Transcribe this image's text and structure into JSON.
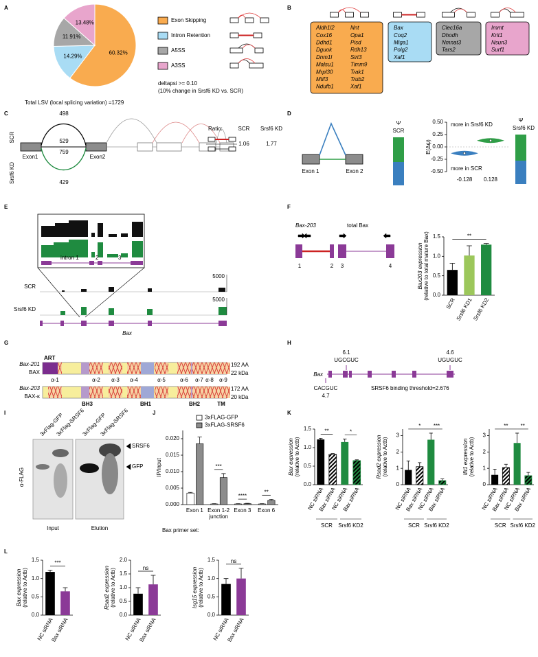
{
  "panels": {
    "A": {
      "letter": "A",
      "chart_data": {
        "type": "pie",
        "categories": [
          "Exon Skipping",
          "Intron Retention",
          "A5SS",
          "A3SS"
        ],
        "values": [
          60.32,
          14.29,
          11.91,
          13.48
        ],
        "value_labels": [
          "60.32%",
          "14.29%",
          "11.91%",
          "13.48%"
        ],
        "colors": [
          "#f9ab4f",
          "#a9dcf4",
          "#a7a7a7",
          "#e8a5cc"
        ],
        "note": [
          "deltapsi >= 0.10",
          "(10% change in Srsf6 KD vs. SCR)"
        ],
        "caption": "Total LSV (local splicing variation) =1729"
      }
    },
    "B": {
      "letter": "B",
      "groups": [
        {
          "color": "#f9ab4f",
          "genes": [
            "Aldh1l2",
            "Cox16",
            "Ddhd1",
            "Dguok",
            "Dnm1l",
            "Malsu1",
            "Mrpl30",
            "Mtif3",
            "Ndufb1",
            "Nnt",
            "Opa1",
            "Pisd",
            "Rdh13",
            "Sirt3",
            "Timm9",
            "Trak1",
            "Trub2",
            "Xaf1"
          ]
        },
        {
          "color": "#a9dcf4",
          "genes": [
            "Bax",
            "Coq2",
            "Miga1",
            "Polg2",
            "Xaf1"
          ]
        },
        {
          "color": "#a7a7a7",
          "genes": [
            "Clec16a",
            "Dhodh",
            "Nmnat3",
            "Tars2"
          ]
        },
        {
          "color": "#e8a5cc",
          "genes": [
            "Immt",
            "Krit1",
            "Nsun3",
            "Surf1"
          ]
        }
      ]
    },
    "C": {
      "letter": "C",
      "scr": "SCR",
      "kd": "Srsf6 KD",
      "counts": [
        498,
        529,
        759,
        429
      ],
      "exons": [
        "Exon1",
        "Exon2"
      ],
      "ratio": {
        "title": "Ratio:",
        "scr": "SCR",
        "kd": "Srsf6 KD",
        "values": [
          1.06,
          1.77
        ]
      }
    },
    "D": {
      "letter": "D",
      "exons": [
        "Exon 1",
        "Exon 2"
      ],
      "psi": [
        "Ψ",
        "Ψ"
      ],
      "scr": "SCR",
      "kd": "Srsf6 KD",
      "chart_data": {
        "type": "violin",
        "ylabel": "E(Δψ)",
        "ylim": [
          -0.5,
          0.5
        ],
        "yticks": [
          {
            "value": 0.5,
            "label": "0.50"
          },
          0.25,
          {
            "value": 0,
            "label": "0.00"
          },
          -0.25,
          {
            "value": -0.5,
            "label": "-0.50"
          }
        ],
        "annotations": [
          "more in Srsf6 KD",
          "more in SCR"
        ],
        "values": [
          -0.128,
          0.128
        ],
        "colors": [
          "#3a7fbf",
          "#2f9e47"
        ]
      }
    },
    "E": {
      "letter": "E",
      "zoom_labels": [
        "intron 1",
        "2",
        "3"
      ],
      "tracks": [
        "SCR",
        "Srsf6 KD"
      ],
      "scale": [
        5000,
        5000
      ],
      "gene": "Bax"
    },
    "F": {
      "letter": "F",
      "transcripts": [
        "Bax-203",
        "total Bax"
      ],
      "exons": [
        1,
        2,
        3,
        4
      ],
      "chart_data": {
        "type": "bar",
        "ylabel": "Bax203 expression",
        "ylabel2": "(relative to total mature Bax)",
        "categories": [
          "SCR",
          "Srsf6 KD1",
          "Srsf6 KD2"
        ],
        "values": [
          0.65,
          1.02,
          1.3
        ],
        "errors": [
          0.17,
          0.25,
          0.03
        ],
        "colors": [
          "#000000",
          "#9cc75b",
          "#1f8b40"
        ],
        "hatched": [
          false,
          false,
          false
        ],
        "ylim": [
          0,
          1.5
        ],
        "yticks": [
          {
            "value": 0,
            "label": "0.0"
          },
          0.5,
          {
            "value": 1,
            "label": "1.0"
          },
          1.5
        ],
        "significance": [
          "**"
        ]
      }
    },
    "G": {
      "letter": "G",
      "isoforms": [
        {
          "transcript": "Bax-201",
          "protein": "BAX",
          "length": "192 AA",
          "mass": "22 kDa"
        },
        {
          "transcript": "Bax-203",
          "protein": "BAX-κ",
          "length": "172 AA",
          "mass": "20 kDa"
        }
      ],
      "art": "ART",
      "helices": [
        "α-1",
        "α-2",
        "α-3",
        "α-4",
        "α-5",
        "α-6",
        "α-7",
        "α-8",
        "α-9"
      ],
      "domains": [
        "BH3",
        "BH1",
        "BH2",
        "TM"
      ]
    },
    "H": {
      "letter": "H",
      "gene": "Bax",
      "sites": [
        {
          "score": 6.1,
          "motif": "UGCGUC"
        },
        {
          "score": 4.6,
          "motif": "UGUGUC"
        },
        {
          "score": 4.7,
          "motif": "CACGUC"
        }
      ],
      "threshold": "SRSF6 binding threshold=2.676"
    },
    "I": {
      "letter": "I",
      "lanes": [
        "3xFlag-GFP",
        "3xFlag-SRSF6",
        "3xFlag-GFP",
        "3xFlag-SRSF6"
      ],
      "antibody": "α-FLAG",
      "bands": [
        "SRSF6",
        "GFP"
      ],
      "fractions": [
        "Input",
        "Elution"
      ]
    },
    "J": {
      "letter": "J",
      "chart_data": {
        "type": "grouped_bar",
        "ylabel": "IP/Input",
        "xlabel": "Bax primer set:",
        "categories": [
          "Exon 1",
          "Exon 1-2 junction",
          "Exon 3",
          "Exon 6"
        ],
        "series": [
          {
            "name": "3xFLAG-GFP",
            "color": "#ffffff",
            "values": [
              0.0035,
              0.0002,
              0.0002,
              0.0002
            ],
            "errors": [
              0.0002,
              0.0001,
              0.0001,
              0.0001
            ]
          },
          {
            "name": "3xFLAG-SRSF6",
            "color": "#8c8c8c",
            "values": [
              0.0185,
              0.0082,
              0.0003,
              0.0013
            ],
            "errors": [
              0.002,
              0.0012,
              0.0001,
              0.0003
            ]
          }
        ],
        "ylim": [
          0,
          0.0225
        ],
        "yticks": [
          {
            "value": 0,
            "label": "0.000"
          },
          {
            "value": 0.005,
            "label": "0.005"
          },
          {
            "value": 0.01,
            "label": "0.010"
          },
          {
            "value": 0.015,
            "label": "0.015"
          },
          {
            "value": 0.02,
            "label": "0.020"
          }
        ],
        "significance": [
          "***",
          "****",
          "**"
        ]
      }
    },
    "K": {
      "letter": "K",
      "groups": [
        "SCR",
        "Srsf6 KD2"
      ],
      "chart_data": [
        {
          "type": "bar",
          "ylabel": "Bax expression",
          "ylabel2": "(relative to Actb)",
          "categories": [
            "NC siRNA",
            "Bax siRNA",
            "NC siRNA",
            "Bax siRNA"
          ],
          "values": [
            1.22,
            0.82,
            1.15,
            0.65
          ],
          "errors": [
            0.03,
            0.02,
            0.08,
            0.02
          ],
          "colors": [
            "#000000",
            "#000000",
            "#1f8b40",
            "#1f8b40"
          ],
          "hatched": [
            false,
            true,
            false,
            true
          ],
          "ylim": [
            0,
            1.5
          ],
          "yticks": [
            {
              "value": 0,
              "label": "0.0"
            },
            0.5,
            {
              "value": 1,
              "label": "1.0"
            },
            1.5
          ],
          "significance": [
            "**",
            "*"
          ]
        },
        {
          "type": "bar",
          "ylabel": "Rsad2 expression",
          "ylabel2": "(relative to Actb)",
          "categories": [
            "NC siRNA",
            "Bax siRNA",
            "NC siRNA",
            "Bax siRNA"
          ],
          "values": [
            0.9,
            1.1,
            2.75,
            0.25
          ],
          "errors": [
            0.55,
            0.25,
            0.4,
            0.1
          ],
          "colors": [
            "#000000",
            "#000000",
            "#1f8b40",
            "#1f8b40"
          ],
          "hatched": [
            false,
            true,
            false,
            true
          ],
          "ylim": [
            0,
            3.4
          ],
          "yticks": [
            0,
            1,
            2,
            3
          ],
          "significance": [
            "*",
            "***"
          ]
        },
        {
          "type": "bar",
          "ylabel": "Ifit1 expression",
          "ylabel2": "(relative to Actb)",
          "categories": [
            "NC siRNA",
            "Bax siRNA",
            "NC siRNA",
            "Bax siRNA"
          ],
          "values": [
            0.6,
            1.05,
            2.55,
            0.55
          ],
          "errors": [
            0.35,
            0.2,
            0.6,
            0.2
          ],
          "colors": [
            "#000000",
            "#000000",
            "#1f8b40",
            "#1f8b40"
          ],
          "hatched": [
            false,
            true,
            false,
            true
          ],
          "ylim": [
            0,
            3.4
          ],
          "yticks": [
            0,
            1,
            2,
            3
          ],
          "significance": [
            "**",
            "**"
          ]
        }
      ]
    },
    "L": {
      "letter": "L",
      "chart_data": [
        {
          "type": "bar",
          "ylabel": "Bax expression",
          "ylabel2": "(relative to Actb)",
          "categories": [
            "NC siRNA",
            "Bax siRNA"
          ],
          "values": [
            1.18,
            0.65
          ],
          "errors": [
            0.05,
            0.1
          ],
          "colors": [
            "#000000",
            "#8b3a97"
          ],
          "hatched": [
            false,
            false
          ],
          "ylim": [
            0,
            1.5
          ],
          "yticks": [
            {
              "value": 0,
              "label": "0.0"
            },
            0.5,
            {
              "value": 1,
              "label": "1.0"
            },
            1.5
          ],
          "significance": [
            "***"
          ]
        },
        {
          "type": "bar",
          "ylabel": "Rsad2 expression",
          "ylabel2": "(relative to Actb)",
          "categories": [
            "NC siRNA",
            "Bax siRNA"
          ],
          "values": [
            0.78,
            1.12
          ],
          "errors": [
            0.22,
            0.33
          ],
          "colors": [
            "#000000",
            "#8b3a97"
          ],
          "hatched": [
            false,
            false
          ],
          "ylim": [
            0,
            2
          ],
          "yticks": [
            {
              "value": 0,
              "label": "0.0"
            },
            0.5,
            {
              "value": 1,
              "label": "1.0"
            },
            1.5,
            {
              "value": 2,
              "label": "2.0"
            }
          ],
          "significance": [
            "ns"
          ]
        },
        {
          "type": "bar",
          "ylabel": "Isg15 expression",
          "ylabel2": "(relative to Actb)",
          "categories": [
            "NC siRNA",
            "Bax siRNA"
          ],
          "values": [
            0.85,
            1.0
          ],
          "errors": [
            0.15,
            0.28
          ],
          "colors": [
            "#000000",
            "#8b3a97"
          ],
          "hatched": [
            false,
            false
          ],
          "ylim": [
            0,
            1.5
          ],
          "yticks": [
            {
              "value": 0,
              "label": "0.0"
            },
            0.5,
            {
              "value": 1,
              "label": "1.0"
            },
            1.5
          ],
          "significance": [
            "ns"
          ]
        }
      ]
    }
  }
}
